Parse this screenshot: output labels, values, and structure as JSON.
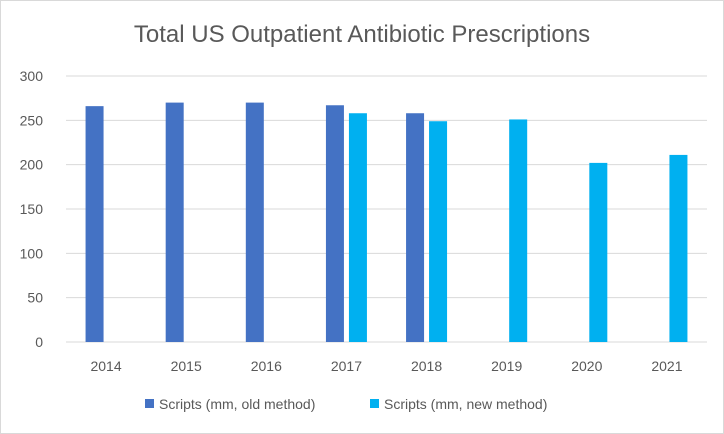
{
  "chart_data": {
    "type": "bar",
    "title": "Total US Outpatient Antibiotic Prescriptions",
    "xlabel": "",
    "ylabel": "",
    "categories": [
      "2014",
      "2015",
      "2016",
      "2017",
      "2018",
      "2019",
      "2020",
      "2021"
    ],
    "series": [
      {
        "name": "Scripts (mm, old method)",
        "color": "#4472c4",
        "values": [
          266,
          270,
          270,
          267,
          258,
          null,
          null,
          null
        ]
      },
      {
        "name": "Scripts (mm, new method)",
        "color": "#00b0f0",
        "values": [
          null,
          null,
          null,
          258,
          249,
          251,
          202,
          211
        ]
      }
    ],
    "ylim": [
      0,
      300
    ],
    "yticks": [
      "0",
      "50",
      "100",
      "150",
      "200",
      "250",
      "300"
    ],
    "grid": true,
    "legend_position": "bottom"
  }
}
